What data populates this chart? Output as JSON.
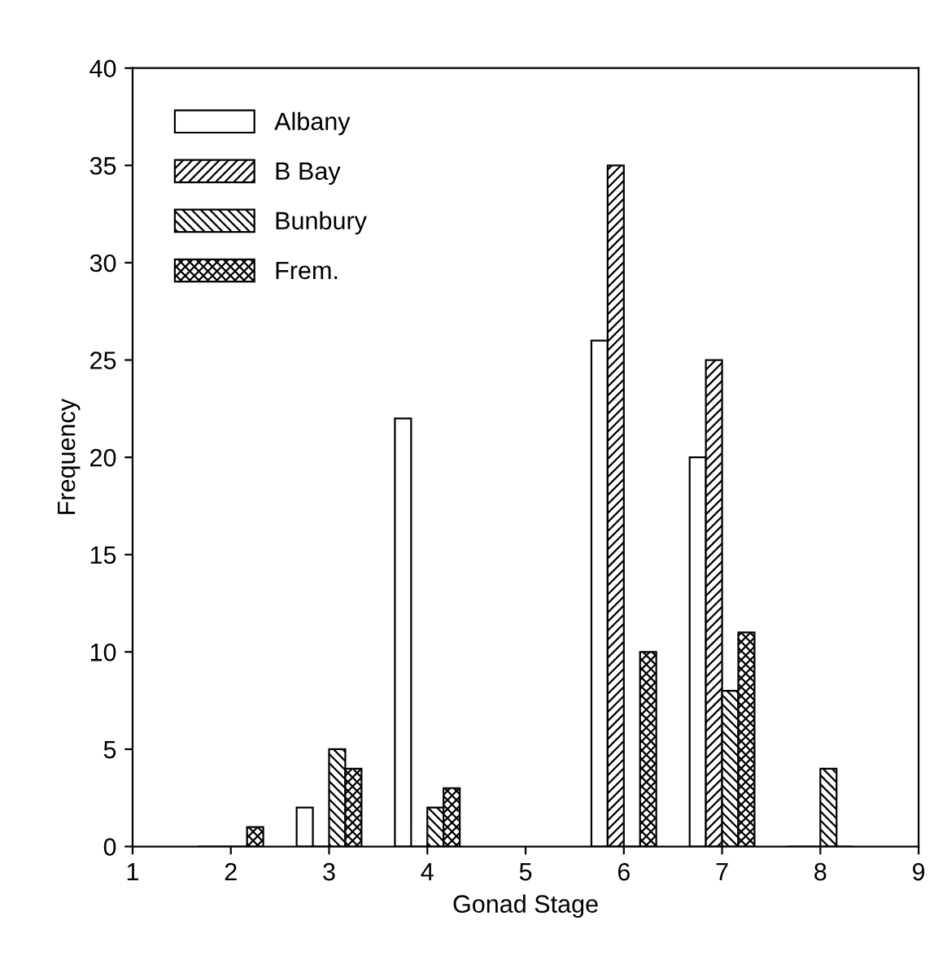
{
  "chart_data": {
    "type": "bar",
    "xlabel": "Gonad Stage",
    "ylabel": "Frequency",
    "x": [
      2,
      3,
      4,
      6,
      7,
      8
    ],
    "series": [
      {
        "name": "Albany",
        "color": "#ffffff",
        "values": [
          0,
          2,
          22,
          26,
          20,
          0
        ]
      },
      {
        "name": "B Bay",
        "color": "#000000",
        "values": [
          0,
          0,
          0,
          35,
          25,
          0
        ]
      },
      {
        "name": "Bunbury",
        "color": "#000000",
        "values": [
          0,
          5,
          2,
          0,
          8,
          4
        ]
      },
      {
        "name": "Frem.",
        "color": "#000000",
        "values": [
          1,
          4,
          3,
          10,
          11,
          0
        ]
      }
    ],
    "xlim": [
      1,
      9
    ],
    "xticks": [
      1,
      2,
      3,
      4,
      5,
      6,
      7,
      8,
      9
    ],
    "ylim": [
      0,
      40
    ],
    "yticks": [
      0,
      5,
      10,
      15,
      20,
      25,
      30,
      35,
      40
    ],
    "grid": false,
    "legend": "top left"
  }
}
